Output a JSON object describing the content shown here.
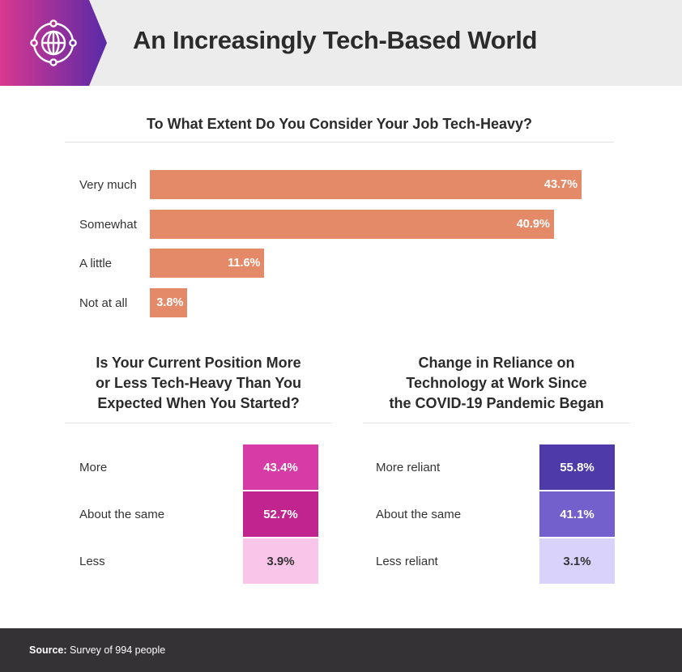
{
  "title": "An Increasingly Tech-Based World",
  "icon": "globe-network-icon",
  "colors": {
    "header_gradient_start": "#d9388f",
    "header_gradient_end": "#5a2aa8",
    "bar": "#e58a68",
    "footer": "#353235"
  },
  "chart_data": [
    {
      "type": "bar",
      "orientation": "horizontal",
      "title": "To What Extent Do You Consider Your Job Tech-Heavy?",
      "categories": [
        "Very much",
        "Somewhat",
        "A little",
        "Not at all"
      ],
      "values": [
        43.7,
        40.9,
        11.6,
        3.8
      ],
      "value_labels": [
        "43.7%",
        "40.9%",
        "11.6%",
        "3.8%"
      ],
      "unit": "%",
      "xlim": [
        0,
        45
      ],
      "grid": false
    },
    {
      "type": "table",
      "title": "Is Your Current Position More or Less Tech-Heavy Than You Expected When You Started?",
      "title_lines": [
        "Is Your Current Position More",
        "or Less Tech-Heavy Than You",
        "Expected When You Started?"
      ],
      "categories": [
        "More",
        "About the same",
        "Less"
      ],
      "values": [
        43.4,
        52.7,
        3.9
      ],
      "value_labels": [
        "43.4%",
        "52.7%",
        "3.9%"
      ],
      "colors": [
        "#d63ba6",
        "#c2248f",
        "#f9c6ea"
      ],
      "text_colors": [
        "#ffffff",
        "#ffffff",
        "#333333"
      ]
    },
    {
      "type": "table",
      "title": "Change in Reliance on Technology at Work Since the COVID-19 Pandemic Began",
      "title_lines": [
        "Change in Reliance on",
        "Technology at Work Since",
        "the COVID-19 Pandemic Began"
      ],
      "categories": [
        "More reliant",
        "About the same",
        "Less reliant"
      ],
      "values": [
        55.8,
        41.1,
        3.1
      ],
      "value_labels": [
        "55.8%",
        "41.1%",
        "3.1%"
      ],
      "colors": [
        "#4f3aa9",
        "#7460cd",
        "#d9d3fb"
      ],
      "text_colors": [
        "#ffffff",
        "#ffffff",
        "#333333"
      ]
    }
  ],
  "footer": {
    "source_label": "Source:",
    "source_text": "Survey of 994 people"
  }
}
